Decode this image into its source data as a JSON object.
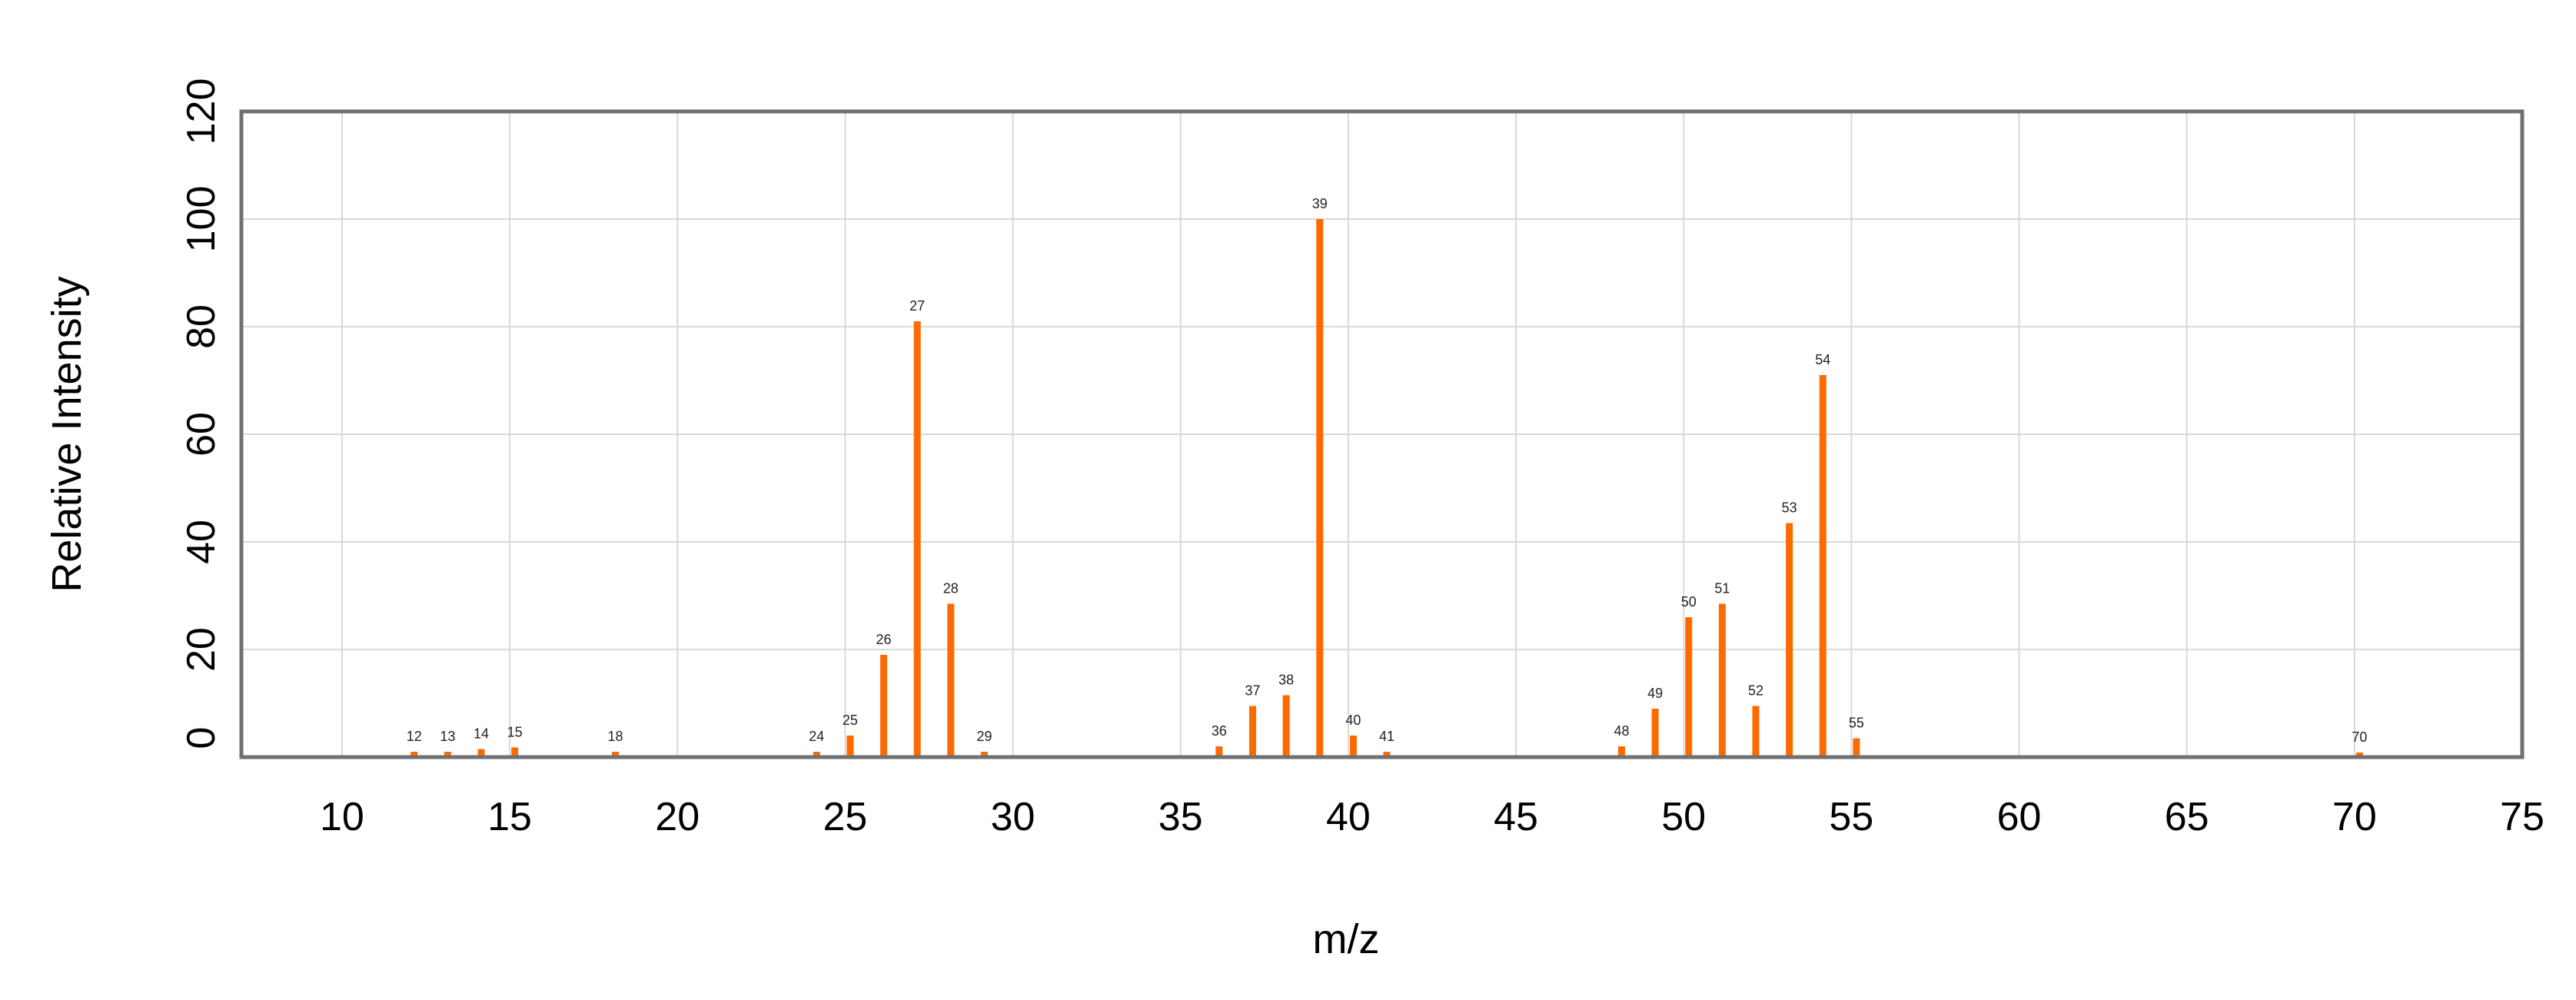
{
  "chart_data": {
    "type": "bar",
    "xlabel": "m/z",
    "ylabel": "Relative Intensity",
    "xlim": [
      7,
      75
    ],
    "ylim": [
      0,
      120
    ],
    "x_ticks": [
      10,
      15,
      20,
      25,
      30,
      35,
      40,
      45,
      50,
      55,
      60,
      65,
      70,
      75
    ],
    "y_ticks": [
      0,
      20,
      40,
      60,
      80,
      100,
      120
    ],
    "grid": true,
    "bar_color": "#FF6A00",
    "peaks": [
      {
        "x": 12,
        "y": 1,
        "label": "12"
      },
      {
        "x": 13,
        "y": 1,
        "label": "13"
      },
      {
        "x": 14,
        "y": 1.5,
        "label": "14"
      },
      {
        "x": 15,
        "y": 1.8,
        "label": "15"
      },
      {
        "x": 18,
        "y": 1,
        "label": "18"
      },
      {
        "x": 24,
        "y": 1,
        "label": "24"
      },
      {
        "x": 25,
        "y": 4,
        "label": "25"
      },
      {
        "x": 26,
        "y": 19,
        "label": "26"
      },
      {
        "x": 27,
        "y": 81,
        "label": "27"
      },
      {
        "x": 28,
        "y": 28.5,
        "label": "28"
      },
      {
        "x": 29,
        "y": 1,
        "label": "29"
      },
      {
        "x": 36,
        "y": 2,
        "label": "36"
      },
      {
        "x": 37,
        "y": 9.5,
        "label": "37"
      },
      {
        "x": 38,
        "y": 11.5,
        "label": "38"
      },
      {
        "x": 39,
        "y": 100,
        "label": "39"
      },
      {
        "x": 40,
        "y": 4,
        "label": "40"
      },
      {
        "x": 41,
        "y": 1,
        "label": "41"
      },
      {
        "x": 48,
        "y": 2,
        "label": "48"
      },
      {
        "x": 49,
        "y": 9,
        "label": "49"
      },
      {
        "x": 50,
        "y": 26,
        "label": "50"
      },
      {
        "x": 51,
        "y": 28.5,
        "label": "51"
      },
      {
        "x": 52,
        "y": 9.5,
        "label": "52"
      },
      {
        "x": 53,
        "y": 43.5,
        "label": "53"
      },
      {
        "x": 54,
        "y": 71,
        "label": "54"
      },
      {
        "x": 55,
        "y": 3.5,
        "label": "55"
      },
      {
        "x": 70,
        "y": 0.8,
        "label": "70"
      }
    ]
  }
}
